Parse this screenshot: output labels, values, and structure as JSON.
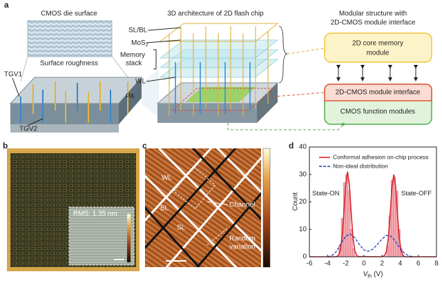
{
  "panels": {
    "a": "a",
    "b": "b",
    "c": "c",
    "d": "d"
  },
  "panel_a": {
    "die_title": "CMOS die surface",
    "roughness_label": "Surface roughness",
    "tgv1": "TGV1",
    "tgv2": "TGV2",
    "pa": "PA",
    "chip_title": "3D architecture of 2D flash chip",
    "sl_bl": "SL/BL",
    "mos2": {
      "text": "MoS",
      "sub": "2"
    },
    "memory_stack": [
      "Memory",
      "stack"
    ],
    "wl": "WL",
    "module_title": [
      "Modular structure with",
      "2D-CMOS module interface"
    ],
    "core_module": [
      "2D core memory",
      "module"
    ],
    "interface_module": "2D-CMOS module interface",
    "cmos_module": "CMOS function modules"
  },
  "panel_b": {
    "rms": "RMS: 1.35 nm"
  },
  "panel_c": {
    "wl": "WL",
    "bl": "BL",
    "sl": "SL",
    "channel": "Channel",
    "random": [
      "Random",
      "variation"
    ]
  },
  "chart_data": {
    "type": "histogram",
    "xlabel": {
      "symbol": "V",
      "sub": "th",
      "unit": "(V)"
    },
    "ylabel": "Count",
    "xlim": [
      -6,
      8
    ],
    "ylim": [
      0,
      40
    ],
    "xticks": [
      -6,
      -4,
      -2,
      0,
      2,
      4,
      6,
      8
    ],
    "yticks": [
      0,
      10,
      20,
      30,
      40
    ],
    "legend": "top-right",
    "annotations": [
      "State-ON",
      "State-OFF"
    ],
    "histogram_color": "#f4a9b2",
    "histograms": [
      {
        "bins": [
          -2.75,
          -2.5,
          -2.25,
          -2,
          -1.75,
          -1.5,
          -1.25,
          -1
        ],
        "counts": [
          4,
          14,
          27,
          30,
          24,
          10,
          3
        ]
      },
      {
        "bins": [
          2.5,
          2.75,
          3,
          3.25,
          3.5,
          3.75,
          4,
          4.25
        ],
        "counts": [
          4,
          15,
          28,
          29,
          24,
          10,
          3
        ]
      }
    ],
    "series": [
      {
        "name": "Conformal adhesion on-chip process",
        "color": "#d7262c",
        "style": "solid",
        "x": [
          -6,
          -3.2,
          -3.0,
          -2.8,
          -2.6,
          -2.4,
          -2.2,
          -2.0,
          -1.8,
          -1.6,
          -1.4,
          -1.2,
          -1.0,
          -0.8,
          -0.6,
          1.9,
          2.1,
          2.3,
          2.5,
          2.7,
          2.9,
          3.1,
          3.3,
          3.5,
          3.7,
          3.9,
          4.1,
          4.3,
          4.5,
          4.7,
          8
        ],
        "values": [
          0,
          0,
          0.1,
          0.5,
          2.3,
          7.1,
          16.1,
          26.3,
          31,
          26.3,
          16.1,
          7.1,
          2.3,
          0.5,
          0.1,
          0,
          0.1,
          0.5,
          2.2,
          6.9,
          15.6,
          25.5,
          30,
          25.5,
          15.6,
          6.9,
          2.2,
          0.5,
          0.1,
          0,
          0
        ]
      },
      {
        "name": "Non-ideal distribution",
        "color": "#1f3fbf",
        "style": "dashed",
        "x": [
          -4,
          -3.5,
          -3,
          -2.5,
          -2,
          -1.5,
          -1,
          -0.5,
          0,
          0.5,
          1,
          1.5,
          2,
          2.5,
          3,
          3.5,
          4,
          4.5,
          5,
          5.5
        ],
        "values": [
          0,
          0.5,
          2,
          5,
          7.5,
          8.3,
          7,
          4.5,
          2.5,
          2,
          2.8,
          4.5,
          6.5,
          7.8,
          7.5,
          5.5,
          3,
          1.2,
          0.3,
          0
        ]
      }
    ]
  }
}
